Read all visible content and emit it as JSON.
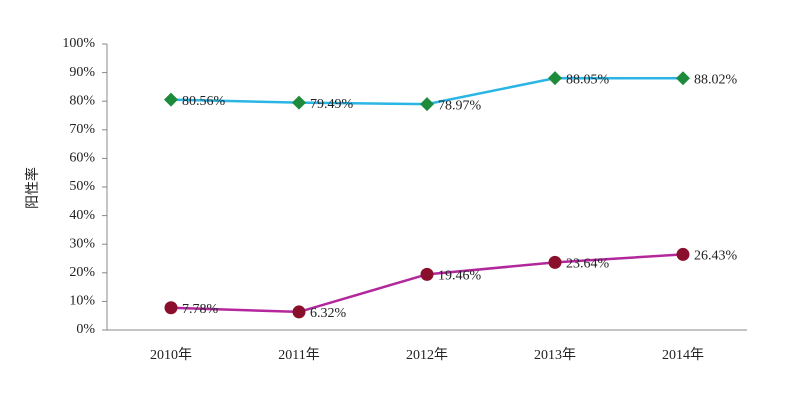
{
  "chart_data": {
    "type": "line",
    "y_label": "阳性率",
    "categories": [
      "2010年",
      "2011年",
      "2012年",
      "2013年",
      "2014年"
    ],
    "series": [
      {
        "color": "#2bb5e5",
        "marker_color": "#1e8a3c",
        "marker": "diamond",
        "values": [
          80.56,
          79.49,
          78.97,
          88.05,
          88.02
        ],
        "value_labels": [
          "80.56%",
          "79.49%",
          "78.97%",
          "88.05%",
          "88.02%"
        ]
      },
      {
        "color": "#b3279c",
        "marker_color": "#8a0f2c",
        "marker": "circle",
        "values": [
          7.78,
          6.32,
          19.46,
          23.64,
          26.43
        ],
        "value_labels": [
          "7.78%",
          "6.32%",
          "19.46%",
          "23.64%",
          "26.43%"
        ]
      }
    ],
    "ylim": [
      0,
      100
    ],
    "yticks": [
      {
        "value": 0,
        "label": "0%"
      },
      {
        "value": 10,
        "label": "10%"
      },
      {
        "value": 20,
        "label": "20%"
      },
      {
        "value": 30,
        "label": "30%"
      },
      {
        "value": 40,
        "label": "40%"
      },
      {
        "value": 50,
        "label": "50%"
      },
      {
        "value": 60,
        "label": "60%"
      },
      {
        "value": 70,
        "label": "70%"
      },
      {
        "value": 80,
        "label": "80%"
      },
      {
        "value": 90,
        "label": "90%"
      },
      {
        "value": 100,
        "label": "100%"
      }
    ],
    "grid": false
  }
}
